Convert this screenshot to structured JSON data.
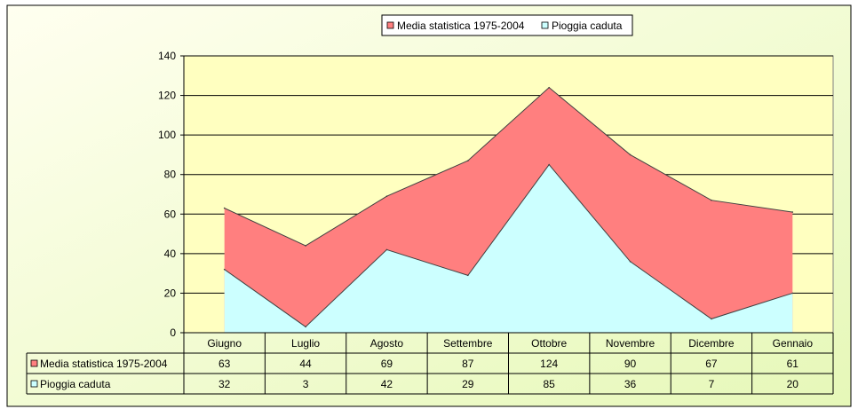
{
  "chart_data": {
    "type": "area",
    "categories": [
      "Giugno",
      "Luglio",
      "Agosto",
      "Settembre",
      "Ottobre",
      "Novembre",
      "Dicembre",
      "Gennaio"
    ],
    "series": [
      {
        "name": "Media statistica 1975-2004",
        "values": [
          63,
          44,
          69,
          87,
          124,
          90,
          67,
          61
        ],
        "color": "#ff7f7f"
      },
      {
        "name": "Pioggia caduta",
        "values": [
          32,
          3,
          42,
          29,
          85,
          36,
          7,
          20
        ],
        "color": "#ccffff"
      }
    ],
    "yticks": [
      0,
      20,
      40,
      60,
      80,
      100,
      120,
      140
    ],
    "ylim": [
      0,
      140
    ],
    "grid": true,
    "legend": "top-center",
    "data_table": true,
    "colors": {
      "background_top": "#fcfcd8",
      "background_bottom": "#f0fcc4",
      "plot_area": "#ffffc0"
    }
  }
}
